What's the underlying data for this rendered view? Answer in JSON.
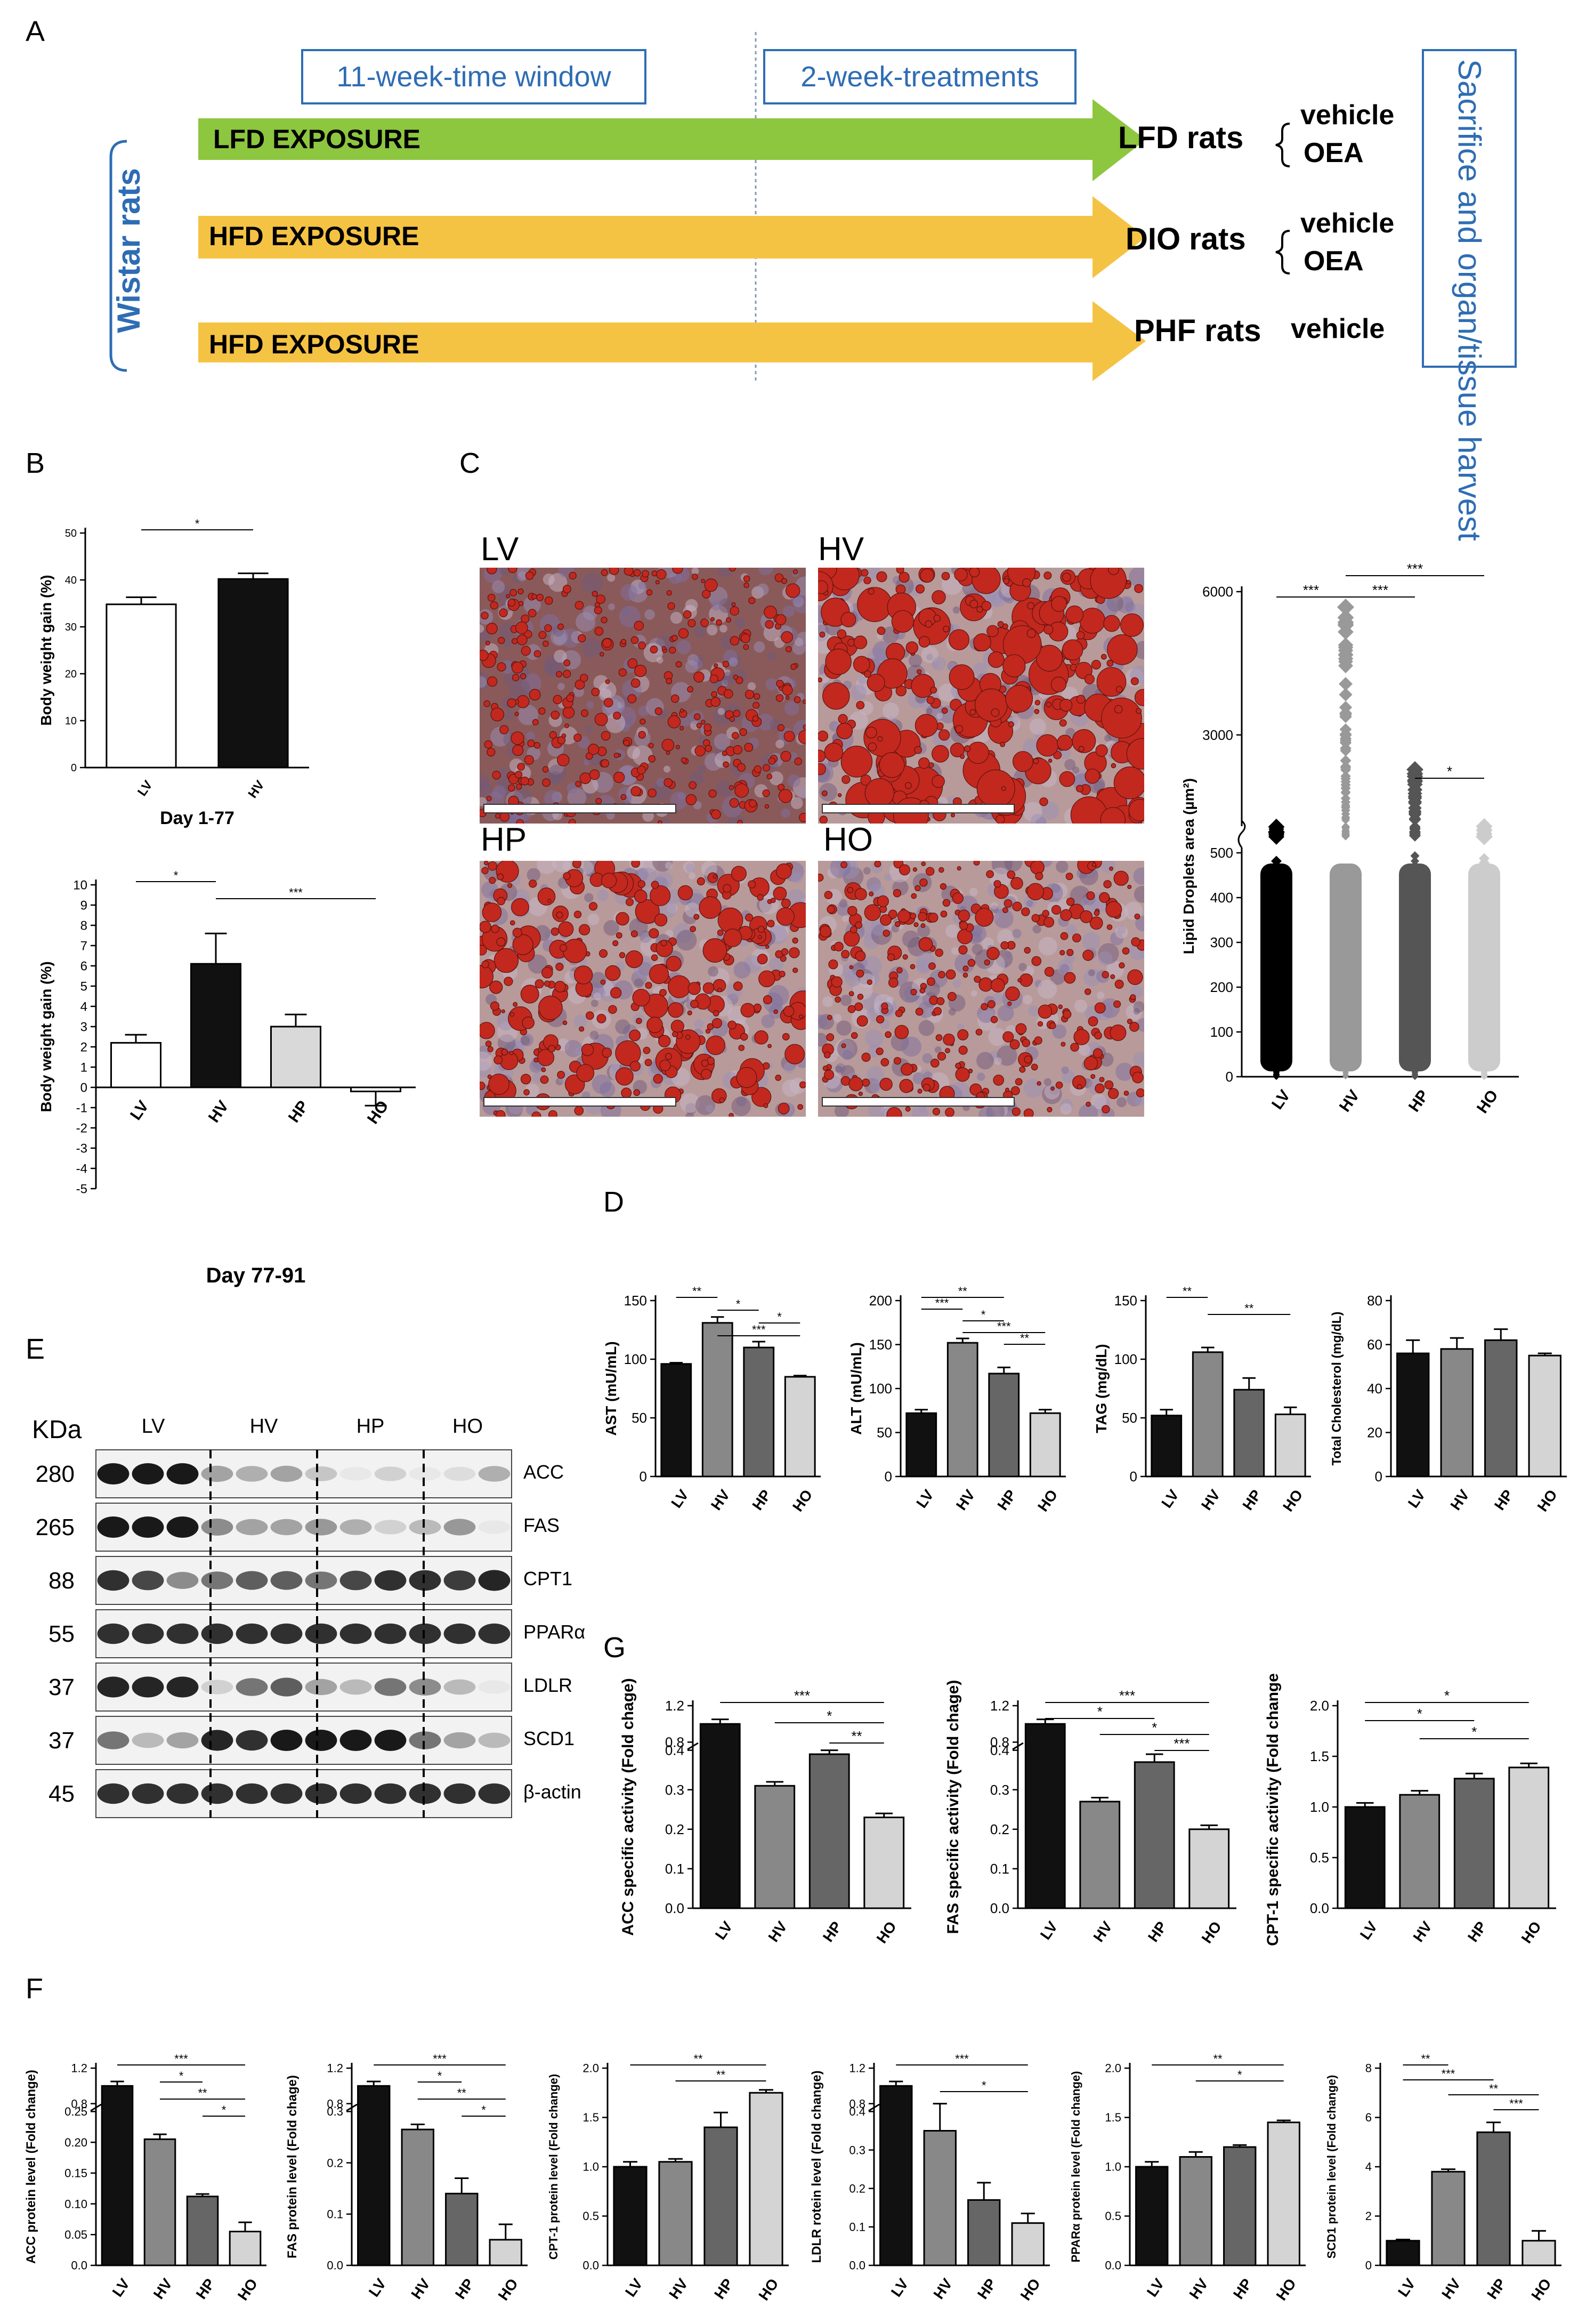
{
  "panelA": {
    "letter": "A",
    "window_label": "11-week-time window",
    "treat_label": "2-week-treatments",
    "side_label": "Wistar rats",
    "sacrifice_label": "Sacrifice and organ/tissue harvest",
    "rows": [
      {
        "exposure": "LFD EXPOSURE",
        "group": "LFD rats",
        "treatments": [
          "vehicle",
          "OEA"
        ],
        "color": "#8dc63f"
      },
      {
        "exposure": "HFD EXPOSURE",
        "group": "DIO rats",
        "treatments": [
          "vehicle",
          "OEA"
        ],
        "color": "#f5c343"
      },
      {
        "exposure": "HFD EXPOSURE",
        "group": "PHF rats",
        "treatments": [
          "vehicle"
        ],
        "color": "#f5c343"
      }
    ]
  },
  "letters": {
    "B": "B",
    "C": "C",
    "D": "D",
    "E": "E",
    "F": "F",
    "G": "G"
  },
  "panelC_photos": [
    "LV",
    "HV",
    "HP",
    "HO"
  ],
  "panelE": {
    "kda_header": "KDa",
    "groups": [
      "LV",
      "HV",
      "HP",
      "HO"
    ],
    "bands": [
      {
        "kda": "280",
        "name": "ACC"
      },
      {
        "kda": "265",
        "name": "FAS"
      },
      {
        "kda": "88",
        "name": "CPT1"
      },
      {
        "kda": "55",
        "name": "PPARα"
      },
      {
        "kda": "37",
        "name": "LDLR"
      },
      {
        "kda": "37",
        "name": "SCD1"
      },
      {
        "kda": "45",
        "name": "β-actin"
      }
    ]
  },
  "chart_data": [
    {
      "id": "B1",
      "type": "bar",
      "categories": [
        "LV",
        "HV"
      ],
      "values": [
        34.8,
        40.2
      ],
      "errors": [
        1.5,
        1.2
      ],
      "colors": [
        "#ffffff",
        "#111111"
      ],
      "ylabel": "Body weight gain (%)",
      "xlabel": "Day 1-77",
      "ylim": [
        0,
        50
      ],
      "yticks": [
        "0",
        "10",
        "20",
        "30",
        "40",
        "50"
      ],
      "sig": [
        {
          "a": 0,
          "b": 1,
          "label": "*"
        }
      ]
    },
    {
      "id": "B2",
      "type": "bar",
      "categories": [
        "LV",
        "HV",
        "HP",
        "HO"
      ],
      "values": [
        2.2,
        6.1,
        3.0,
        -0.2
      ],
      "errors": [
        0.4,
        1.5,
        0.6,
        0.7
      ],
      "colors": [
        "#ffffff",
        "#111111",
        "#d9d9d9",
        "#ffffff"
      ],
      "ylabel": "Body weight gain (%)",
      "xlabel": "Day 77-91",
      "ylim": [
        -5,
        10
      ],
      "yticks": [
        "-5",
        "-4",
        "-3",
        "-2",
        "-1",
        "0",
        "1",
        "2",
        "3",
        "4",
        "5",
        "6",
        "7",
        "8",
        "9",
        "10"
      ],
      "sig": [
        {
          "a": 0,
          "b": 1,
          "label": "*"
        },
        {
          "a": 1,
          "b": 3,
          "label": "***"
        }
      ]
    },
    {
      "id": "C",
      "type": "scatter",
      "categories": [
        "LV",
        "HV",
        "HP",
        "HO"
      ],
      "ylabel": "Lipid Droplets area (µm²)",
      "yticks_low": [
        "0",
        "100",
        "200",
        "300",
        "400",
        "500"
      ],
      "yticks_high": [
        "3000",
        "6000"
      ],
      "max_values": [
        1200,
        5800,
        2300,
        1200
      ],
      "colors": [
        "#000000",
        "#999999",
        "#555555",
        "#cccccc"
      ],
      "sig": [
        {
          "a": 0,
          "b": 1,
          "label": "***"
        },
        {
          "a": 1,
          "b": 2,
          "label": "***"
        },
        {
          "a": 1,
          "b": 3,
          "label": "***"
        },
        {
          "a": 2,
          "b": 3,
          "label": "*"
        }
      ]
    },
    {
      "id": "D1",
      "type": "bar",
      "categories": [
        "LV",
        "HV",
        "HP",
        "HO"
      ],
      "values": [
        96,
        131,
        110,
        85
      ],
      "errors": [
        1,
        5,
        5,
        1
      ],
      "ylabel": "AST (mU/mL)",
      "ylim": [
        0,
        150
      ],
      "yticks": [
        "0",
        "50",
        "100",
        "150"
      ],
      "sig": [
        {
          "a": 0,
          "b": 1,
          "label": "**"
        },
        {
          "a": 1,
          "b": 2,
          "label": "*"
        },
        {
          "a": 2,
          "b": 3,
          "label": "*"
        },
        {
          "a": 1,
          "b": 3,
          "label": "***"
        }
      ]
    },
    {
      "id": "D2",
      "type": "bar",
      "categories": [
        "LV",
        "HV",
        "HP",
        "HO"
      ],
      "values": [
        72,
        152,
        117,
        72
      ],
      "errors": [
        4,
        5,
        7,
        4
      ],
      "ylabel": "ALT (mU/mL)",
      "ylim": [
        0,
        200
      ],
      "yticks": [
        "0",
        "50",
        "100",
        "150",
        "200"
      ],
      "sig": [
        {
          "a": 0,
          "b": 2,
          "label": "**"
        },
        {
          "a": 0,
          "b": 1,
          "label": "***"
        },
        {
          "a": 1,
          "b": 2,
          "label": "*"
        },
        {
          "a": 1,
          "b": 3,
          "label": "***"
        },
        {
          "a": 2,
          "b": 3,
          "label": "**"
        }
      ]
    },
    {
      "id": "D3",
      "type": "bar",
      "categories": [
        "LV",
        "HV",
        "HP",
        "HO"
      ],
      "values": [
        52,
        106,
        74,
        53
      ],
      "errors": [
        5,
        4,
        10,
        6
      ],
      "ylabel": "TAG (mg/dL)",
      "ylim": [
        0,
        150
      ],
      "yticks": [
        "0",
        "50",
        "100",
        "150"
      ],
      "sig": [
        {
          "a": 0,
          "b": 1,
          "label": "**"
        },
        {
          "a": 1,
          "b": 3,
          "label": "**"
        }
      ]
    },
    {
      "id": "D4",
      "type": "bar",
      "categories": [
        "LV",
        "HV",
        "HP",
        "HO"
      ],
      "values": [
        56,
        58,
        62,
        55
      ],
      "errors": [
        6,
        5,
        5,
        1
      ],
      "ylabel": "Total Cholesterol (mg/dL)",
      "ylim": [
        0,
        80
      ],
      "yticks": [
        "0",
        "20",
        "40",
        "60",
        "80"
      ],
      "sig": []
    },
    {
      "id": "G1",
      "type": "bar",
      "categories": [
        "LV",
        "HV",
        "HP",
        "HO"
      ],
      "values": [
        1.0,
        0.31,
        0.39,
        0.23
      ],
      "errors": [
        0.05,
        0.01,
        0.01,
        0.01
      ],
      "ylabel": "ACC specific activity (Fold chage)",
      "ylim": [
        0,
        1.2
      ],
      "yticks": [
        "0.0",
        "0.1",
        "0.2",
        "0.3",
        "0.4",
        "0.8",
        "1.2"
      ],
      "sig": [
        {
          "a": 0,
          "b": 3,
          "label": "***"
        },
        {
          "a": 1,
          "b": 3,
          "label": "*"
        },
        {
          "a": 2,
          "b": 3,
          "label": "**"
        }
      ]
    },
    {
      "id": "G2",
      "type": "bar",
      "categories": [
        "LV",
        "HV",
        "HP",
        "HO"
      ],
      "values": [
        1.0,
        0.27,
        0.37,
        0.2
      ],
      "errors": [
        0.05,
        0.01,
        0.02,
        0.01
      ],
      "ylabel": "FAS specific activity (Fold chage)",
      "ylim": [
        0,
        1.2
      ],
      "yticks": [
        "0.0",
        "0.1",
        "0.2",
        "0.3",
        "0.4",
        "0.8",
        "1.2"
      ],
      "sig": [
        {
          "a": 0,
          "b": 3,
          "label": "***"
        },
        {
          "a": 0,
          "b": 2,
          "label": "*"
        },
        {
          "a": 1,
          "b": 3,
          "label": "*"
        },
        {
          "a": 2,
          "b": 3,
          "label": "***"
        }
      ]
    },
    {
      "id": "G3",
      "type": "bar",
      "categories": [
        "LV",
        "HV",
        "HP",
        "HO"
      ],
      "values": [
        1.0,
        1.12,
        1.28,
        1.39
      ],
      "errors": [
        0.04,
        0.04,
        0.05,
        0.04
      ],
      "ylabel": "CPT-1 specific activity (Fold change)",
      "ylim": [
        0,
        2.0
      ],
      "yticks": [
        "0.0",
        "0.5",
        "1.0",
        "1.5",
        "2.0"
      ],
      "sig": [
        {
          "a": 0,
          "b": 3,
          "label": "*"
        },
        {
          "a": 0,
          "b": 2,
          "label": "*"
        },
        {
          "a": 1,
          "b": 3,
          "label": "*"
        }
      ]
    },
    {
      "id": "F1",
      "type": "bar",
      "categories": [
        "LV",
        "HV",
        "HP",
        "HO"
      ],
      "values": [
        1.0,
        0.205,
        0.112,
        0.055
      ],
      "errors": [
        0.05,
        0.008,
        0.004,
        0.015
      ],
      "ylabel": "ACC protein level (Fold change)",
      "yticks": [
        "0.0",
        "0.05",
        "0.10",
        "0.15",
        "0.20",
        "0.25",
        "0.8",
        "1.2"
      ],
      "sig": [
        {
          "a": 0,
          "b": 3,
          "label": "***"
        },
        {
          "a": 1,
          "b": 2,
          "label": "*"
        },
        {
          "a": 1,
          "b": 3,
          "label": "**"
        },
        {
          "a": 2,
          "b": 3,
          "label": "*"
        }
      ]
    },
    {
      "id": "F2",
      "type": "bar",
      "categories": [
        "LV",
        "HV",
        "HP",
        "HO"
      ],
      "values": [
        1.0,
        0.265,
        0.14,
        0.05
      ],
      "errors": [
        0.05,
        0.01,
        0.03,
        0.03
      ],
      "ylabel": "FAS protein level (Fold chage)",
      "yticks": [
        "0.0",
        "0.1",
        "0.2",
        "0.3",
        "0.8",
        "1.2"
      ],
      "sig": [
        {
          "a": 0,
          "b": 3,
          "label": "***"
        },
        {
          "a": 1,
          "b": 2,
          "label": "*"
        },
        {
          "a": 1,
          "b": 3,
          "label": "**"
        },
        {
          "a": 2,
          "b": 3,
          "label": "*"
        }
      ]
    },
    {
      "id": "F3",
      "type": "bar",
      "categories": [
        "LV",
        "HV",
        "HP",
        "HO"
      ],
      "values": [
        1.0,
        1.05,
        1.4,
        1.75
      ],
      "errors": [
        0.05,
        0.03,
        0.15,
        0.03
      ],
      "ylabel": "CPT-1 protein level (Fold change)",
      "ylim": [
        0,
        2.0
      ],
      "yticks": [
        "0.0",
        "0.5",
        "1.0",
        "1.5",
        "2.0"
      ],
      "sig": [
        {
          "a": 0,
          "b": 3,
          "label": "**"
        },
        {
          "a": 1,
          "b": 3,
          "label": "**"
        }
      ]
    },
    {
      "id": "F4",
      "type": "bar",
      "categories": [
        "LV",
        "HV",
        "HP",
        "HO"
      ],
      "values": [
        1.0,
        0.35,
        0.17,
        0.11
      ],
      "errors": [
        0.05,
        0.06,
        0.045,
        0.025
      ],
      "ylabel": "LDLR rotein level (Fold change)",
      "yticks": [
        "0.0",
        "0.1",
        "0.2",
        "0.3",
        "0.4",
        "0.8",
        "1.2"
      ],
      "sig": [
        {
          "a": 0,
          "b": 3,
          "label": "***"
        },
        {
          "a": 1,
          "b": 3,
          "label": "*"
        }
      ]
    },
    {
      "id": "F5",
      "type": "bar",
      "categories": [
        "LV",
        "HV",
        "HP",
        "HO"
      ],
      "values": [
        1.0,
        1.1,
        1.2,
        1.45
      ],
      "errors": [
        0.05,
        0.05,
        0.02,
        0.02
      ],
      "ylabel": "PPARα protein level (Fold change)",
      "ylim": [
        0,
        2.0
      ],
      "yticks": [
        "0.0",
        "0.5",
        "1.0",
        "1.5",
        "2.0"
      ],
      "sig": [
        {
          "a": 0,
          "b": 3,
          "label": "**"
        },
        {
          "a": 1,
          "b": 3,
          "label": "*"
        }
      ]
    },
    {
      "id": "F6",
      "type": "bar",
      "categories": [
        "LV",
        "HV",
        "HP",
        "HO"
      ],
      "values": [
        1.0,
        3.8,
        5.4,
        1.0
      ],
      "errors": [
        0.05,
        0.1,
        0.4,
        0.4
      ],
      "ylabel": "SCD1 protein level (Fold change)",
      "ylim": [
        0,
        8
      ],
      "yticks": [
        "0",
        "2",
        "4",
        "6",
        "8"
      ],
      "sig": [
        {
          "a": 0,
          "b": 1,
          "label": "**"
        },
        {
          "a": 0,
          "b": 2,
          "label": "***"
        },
        {
          "a": 1,
          "b": 3,
          "label": "**"
        },
        {
          "a": 2,
          "b": 3,
          "label": "***"
        }
      ]
    }
  ]
}
